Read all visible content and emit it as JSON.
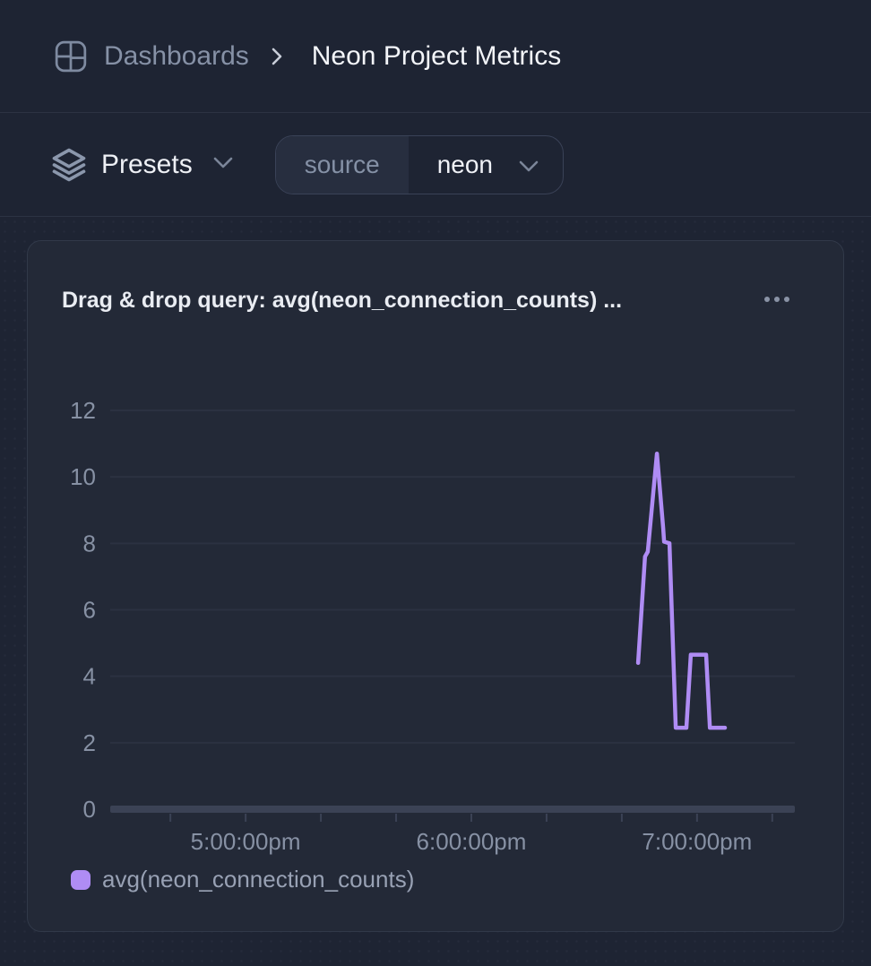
{
  "header": {
    "breadcrumb": {
      "root": "Dashboards",
      "current": "Neon Project Metrics"
    }
  },
  "toolbar": {
    "presets_label": "Presets",
    "filter_pill": {
      "key": "source",
      "value": "neon"
    }
  },
  "panel": {
    "title": "Drag & drop query: avg(neon_connection_counts) ..."
  },
  "colors": {
    "background": "#1e2433",
    "card_background": "#232937",
    "accent_purple": "#af8cf4",
    "text_primary": "#f3f5f9",
    "text_muted": "#8691a6"
  },
  "chart_data": {
    "type": "line",
    "title": "avg(neon_connection_counts)",
    "xlabel": "",
    "ylabel": "",
    "ylim": [
      0,
      12
    ],
    "yticks": [
      0,
      2,
      4,
      6,
      8,
      10,
      12
    ],
    "x_domain": [
      "16:24:00",
      "19:26:00"
    ],
    "x_major_ticks": [
      {
        "time": "17:00:00",
        "label": "5:00:00pm"
      },
      {
        "time": "18:00:00",
        "label": "6:00:00pm"
      },
      {
        "time": "19:00:00",
        "label": "7:00:00pm"
      }
    ],
    "x_minor_tick_interval_min": 20,
    "grid": "horizontal",
    "legend_position": "bottom-left",
    "colors": {
      "grid": "#2b3141",
      "axis": "#3b4255",
      "tick_text": "#8791a4"
    },
    "series": [
      {
        "name": "avg(neon_connection_counts)",
        "color": "#af8cf4",
        "points": [
          [
            "18:44:20",
            4.4
          ],
          [
            "18:46:10",
            7.6
          ],
          [
            "18:46:55",
            7.75
          ],
          [
            "18:49:20",
            10.7
          ],
          [
            "18:51:00",
            8.45
          ],
          [
            "18:51:15",
            8.05
          ],
          [
            "18:52:40",
            8.0
          ],
          [
            "18:54:20",
            2.45
          ],
          [
            "18:57:10",
            2.45
          ],
          [
            "18:58:20",
            4.65
          ],
          [
            "19:02:25",
            4.65
          ],
          [
            "19:03:25",
            2.45
          ],
          [
            "19:07:25",
            2.45
          ]
        ]
      }
    ]
  }
}
